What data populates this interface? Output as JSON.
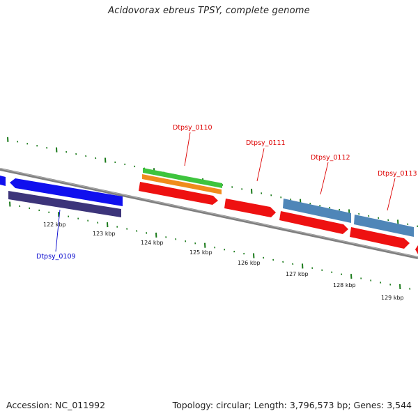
{
  "title": "Acidovorax ebreus TPSY, complete genome",
  "footer": {
    "accession": "Accession: NC_011992",
    "topology": "Topology: circular; Length: 3,796,573 bp; Genes: 3,544"
  },
  "colors": {
    "backbone": "#7f7f7f",
    "tick": "#1a7a1a",
    "cds_forward": "#ee1111",
    "cds_reverse": "#1010ee",
    "gene_forward": "#4f86b8",
    "gene_reverse": "#3c347a",
    "misc_green": "#3ec43e",
    "misc_orange": "#f08c1c",
    "label_forward": "#dd0000",
    "label_reverse": "#0000cc"
  },
  "scale_labels": [
    "122 kbp",
    "123 kbp",
    "124 kbp",
    "125 kbp",
    "126 kbp",
    "127 kbp",
    "128 kbp",
    "129 kbp"
  ],
  "gene_labels": [
    {
      "name": "Dtpsy_0109",
      "strand": "reverse"
    },
    {
      "name": "Dtpsy_0110",
      "strand": "forward"
    },
    {
      "name": "Dtpsy_0111",
      "strand": "forward"
    },
    {
      "name": "Dtpsy_0112",
      "strand": "forward"
    },
    {
      "name": "Dtpsy_0113",
      "strand": "forward"
    }
  ]
}
